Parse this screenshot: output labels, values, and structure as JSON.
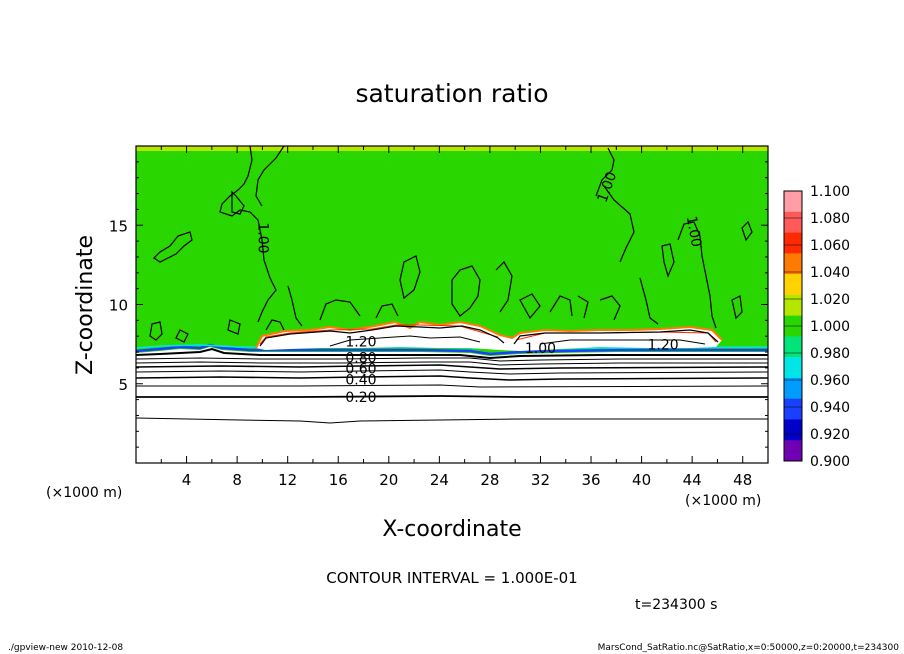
{
  "chart_data": {
    "type": "heatmap",
    "title": "saturation ratio",
    "xlabel": "X-coordinate",
    "ylabel": "Z-coordinate",
    "x_unit_label": "(×1000 m)",
    "x_unit_label_right": "(×1000 m)",
    "xlim": [
      0,
      50
    ],
    "ylim": [
      0,
      20
    ],
    "x_ticks": [
      "4",
      "8",
      "12",
      "16",
      "20",
      "24",
      "28",
      "32",
      "36",
      "40",
      "44",
      "48"
    ],
    "x_tick_values": [
      4,
      8,
      12,
      16,
      20,
      24,
      28,
      32,
      36,
      40,
      44,
      48
    ],
    "y_ticks": [
      "5",
      "10",
      "15"
    ],
    "y_tick_values": [
      5,
      10,
      15
    ],
    "contour_labels": [
      {
        "text": "1.00",
        "x": 10.0,
        "z": 14.2,
        "rotate": 90
      },
      {
        "text": "1.00",
        "x": 37.3,
        "z": 17.4,
        "rotate": -70
      },
      {
        "text": "1.00",
        "x": 44.1,
        "z": 14.6,
        "rotate": 80
      },
      {
        "text": "1.20",
        "x": 17.8,
        "z": 7.6,
        "rotate": 0
      },
      {
        "text": "1.00",
        "x": 32.0,
        "z": 7.2,
        "rotate": 0
      },
      {
        "text": "1.20",
        "x": 41.7,
        "z": 7.4,
        "rotate": 0
      },
      {
        "text": "0.80",
        "x": 17.8,
        "z": 6.6,
        "rotate": 0
      },
      {
        "text": "0.60",
        "x": 17.8,
        "z": 5.9,
        "rotate": 0
      },
      {
        "text": "0.40",
        "x": 17.8,
        "z": 5.2,
        "rotate": 0
      },
      {
        "text": "0.20",
        "x": 17.8,
        "z": 4.1,
        "rotate": 0
      }
    ],
    "colorbar": {
      "levels": [
        "1.100",
        "1.080",
        "1.060",
        "1.040",
        "1.020",
        "1.000",
        "0.980",
        "0.960",
        "0.940",
        "0.920",
        "0.900"
      ],
      "colors": [
        "#ff9ea6",
        "#ff5a5a",
        "#ff2a00",
        "#ff7a00",
        "#ffd200",
        "#b4e600",
        "#2ad600",
        "#00e47a",
        "#00e6e6",
        "#009cff",
        "#1a40ff",
        "#0000c8",
        "#7000b4"
      ]
    },
    "field_colors": {
      "main": "#2ad600",
      "supersaturated": "#ffffff",
      "lower": "#ffffff",
      "top_band": "#b4e600"
    },
    "contour_interval": "CONTOUR INTERVAL = 1.000E-01",
    "time_label": "t=234300 s"
  },
  "footer": {
    "left": "./gpview-new   2010-12-08",
    "right": "MarsCond_SatRatio.nc@SatRatio,x=0:50000,z=0:20000,t=234300"
  }
}
